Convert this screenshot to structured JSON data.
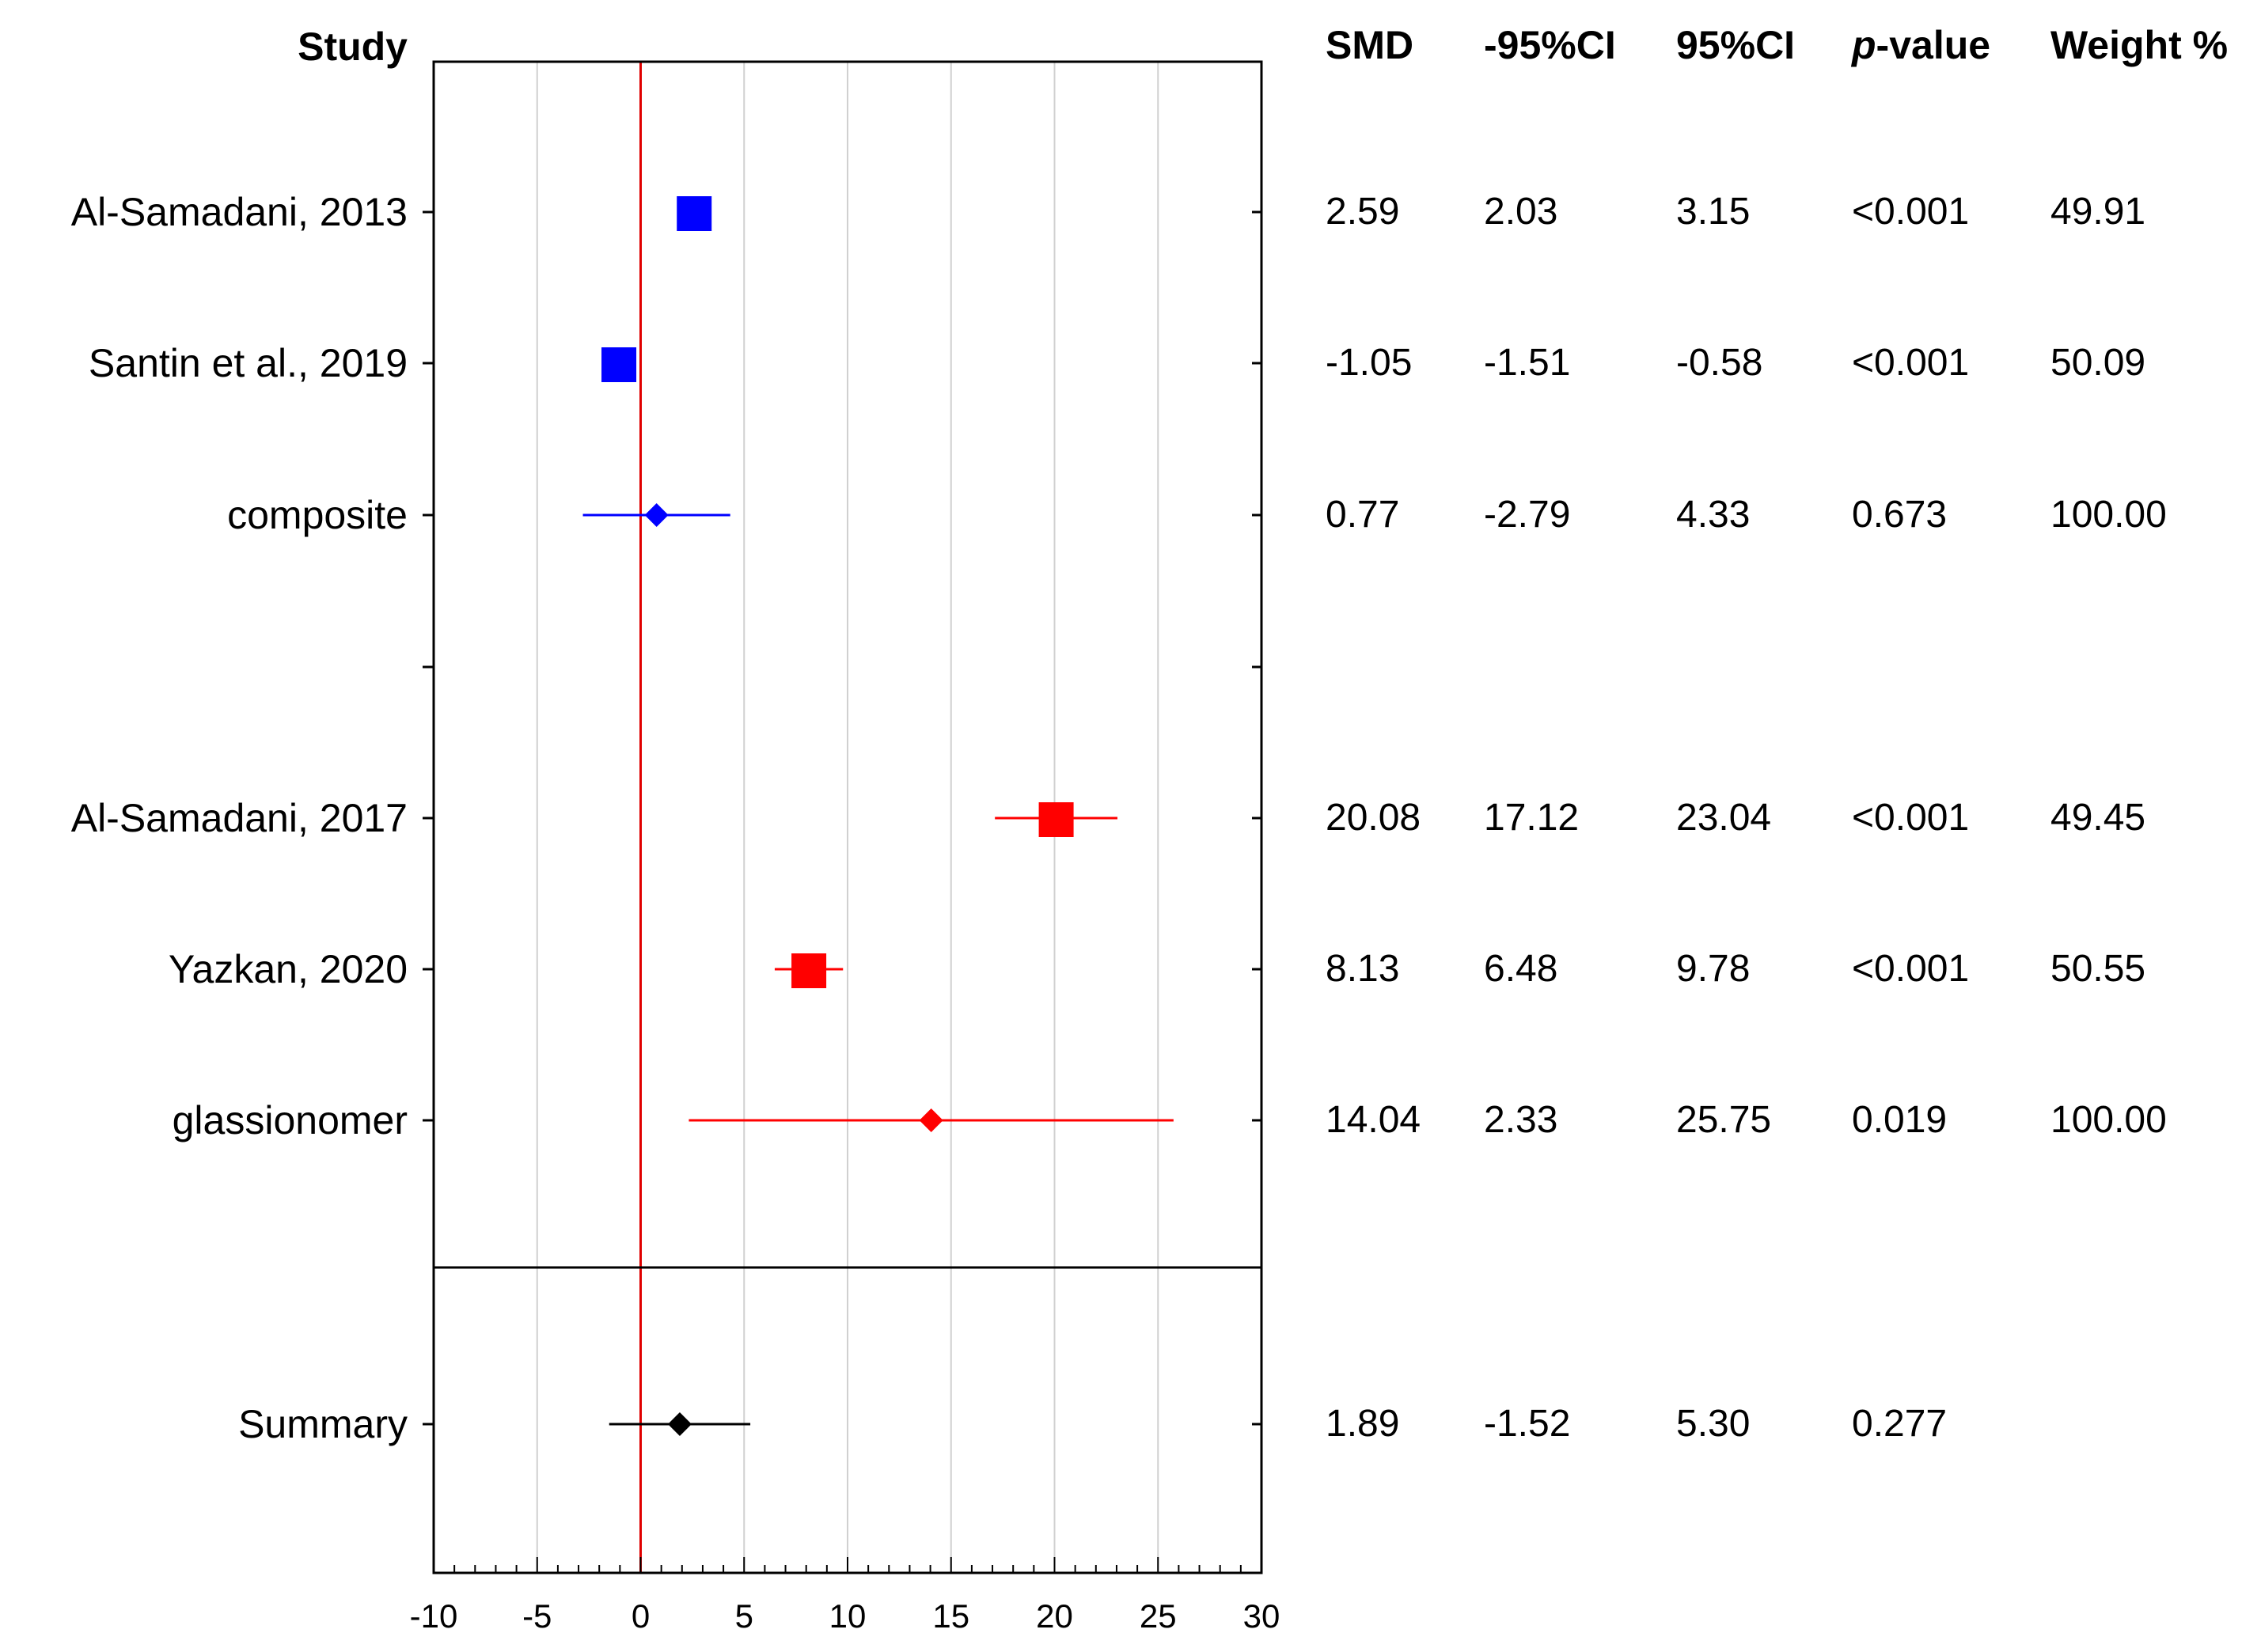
{
  "chart_data": {
    "type": "forest",
    "x_ticks": [
      -10,
      -5,
      0,
      5,
      10,
      15,
      20,
      25,
      30
    ],
    "xlim": [
      -10,
      30
    ],
    "reference_line": 0,
    "grid": true,
    "headers": {
      "study": "Study",
      "smd": "SMD",
      "lower_ci": "-95%CI",
      "upper_ci": "95%CI",
      "p_prefix": "p",
      "p_suffix": "-value",
      "weight": "Weight %"
    },
    "rows": [
      {
        "label": "Al-Samadani, 2013",
        "smd": 2.59,
        "lower": 2.03,
        "upper": 3.15,
        "smd_text": "2.59",
        "lower_text": "2.03",
        "upper_text": "3.15",
        "p": "<0.001",
        "weight": "49.91",
        "color": "#0000ff",
        "marker": "square"
      },
      {
        "label": "Santin et al., 2019",
        "smd": -1.05,
        "lower": -1.51,
        "upper": -0.58,
        "smd_text": "-1.05",
        "lower_text": "-1.51",
        "upper_text": "-0.58",
        "p": "<0.001",
        "weight": "50.09",
        "color": "#0000ff",
        "marker": "square"
      },
      {
        "label": "composite",
        "smd": 0.77,
        "lower": -2.79,
        "upper": 4.33,
        "smd_text": "0.77",
        "lower_text": "-2.79",
        "upper_text": "4.33",
        "p": "0.673",
        "weight": "100.00",
        "color": "#0000ff",
        "marker": "diamond"
      },
      {
        "label": "Al-Samadani, 2017",
        "smd": 20.08,
        "lower": 17.12,
        "upper": 23.04,
        "smd_text": "20.08",
        "lower_text": "17.12",
        "upper_text": "23.04",
        "p": "<0.001",
        "weight": "49.45",
        "color": "#ff0000",
        "marker": "square"
      },
      {
        "label": "Yazkan, 2020",
        "smd": 8.13,
        "lower": 6.48,
        "upper": 9.78,
        "smd_text": "8.13",
        "lower_text": "6.48",
        "upper_text": "9.78",
        "p": "<0.001",
        "weight": "50.55",
        "color": "#ff0000",
        "marker": "square"
      },
      {
        "label": "glassionomer",
        "smd": 14.04,
        "lower": 2.33,
        "upper": 25.75,
        "smd_text": "14.04",
        "lower_text": "2.33",
        "upper_text": "25.75",
        "p": "0.019",
        "weight": "100.00",
        "color": "#ff0000",
        "marker": "diamond"
      },
      {
        "label": "Summary",
        "smd": 1.89,
        "lower": -1.52,
        "upper": 5.3,
        "smd_text": "1.89",
        "lower_text": "-1.52",
        "upper_text": "5.30",
        "p": "0.277",
        "weight": "",
        "color": "#000000",
        "marker": "diamond"
      }
    ],
    "colors": {
      "reference_line": "#e00000",
      "grid": "#d0d0d0",
      "frame": "#000000"
    }
  }
}
